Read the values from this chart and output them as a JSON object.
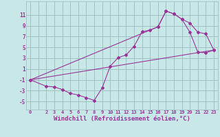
{
  "background_color": "#c8e8e8",
  "grid_color": "#99bbbb",
  "line_color": "#993399",
  "marker_color": "#993399",
  "xlabel": "Windchill (Refroidissement éolien,°C)",
  "xlabel_fontsize": 6.5,
  "ylabel_ticks": [
    -5,
    -3,
    -1,
    1,
    3,
    5,
    7,
    9,
    11
  ],
  "xlim": [
    -0.5,
    23.5
  ],
  "ylim": [
    -6.5,
    13.5
  ],
  "xtick_labels": [
    "0",
    "",
    "2",
    "3",
    "4",
    "5",
    "6",
    "7",
    "8",
    "9",
    "10",
    "11",
    "12",
    "13",
    "14",
    "15",
    "16",
    "17",
    "18",
    "19",
    "20",
    "21",
    "22",
    "23"
  ],
  "line1_x": [
    0,
    2,
    3,
    4,
    5,
    6,
    7,
    8,
    9,
    10,
    11,
    12,
    13,
    14,
    15,
    16,
    17,
    18,
    19,
    20,
    21,
    22,
    23
  ],
  "line1_y": [
    -1,
    -2.2,
    -2.3,
    -2.8,
    -3.5,
    -3.8,
    -4.3,
    -4.8,
    -2.5,
    1.5,
    3.1,
    3.6,
    5.2,
    7.9,
    8.2,
    8.8,
    11.7,
    11.2,
    10.2,
    7.8,
    4.1,
    4.0,
    4.5
  ],
  "line2_x": [
    0,
    23
  ],
  "line2_y": [
    -1,
    4.5
  ],
  "line3_x": [
    0,
    16,
    17,
    18,
    19,
    20,
    21,
    22,
    23
  ],
  "line3_y": [
    -1,
    8.8,
    11.7,
    11.2,
    10.2,
    9.5,
    7.8,
    7.5,
    4.5
  ]
}
